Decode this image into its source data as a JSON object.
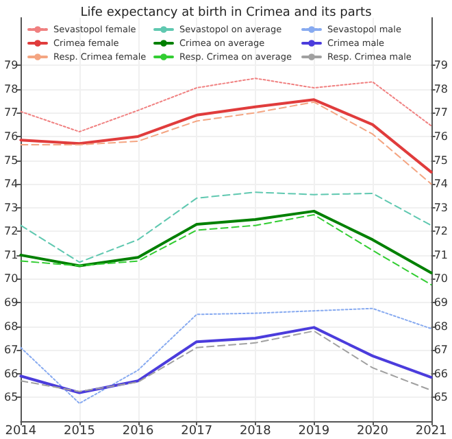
{
  "chart_data": {
    "type": "line",
    "title": "Life expectancy at birth in Crimea and its parts",
    "x": [
      2014,
      2015,
      2016,
      2017,
      2018,
      2019,
      2020,
      2021
    ],
    "series": [
      {
        "name": "Sevastopol female",
        "color": "#f08080",
        "line_style": "dotted",
        "values": [
          77.05,
          76.2,
          77.1,
          78.05,
          78.45,
          78.05,
          78.3,
          76.45
        ]
      },
      {
        "name": "Crimea female",
        "color": "#e03c3c",
        "line_style": "solid",
        "values": [
          75.85,
          75.7,
          76.0,
          76.9,
          77.25,
          77.55,
          76.5,
          74.5
        ]
      },
      {
        "name": "Resp. Crimea female",
        "color": "#f4a582",
        "line_style": "dashed",
        "values": [
          75.65,
          75.65,
          75.8,
          76.65,
          77.0,
          77.45,
          76.1,
          74.0
        ]
      },
      {
        "name": "Sevastopol on average",
        "color": "#5fc8b0",
        "line_style": "dashed",
        "values": [
          72.25,
          70.7,
          71.65,
          73.4,
          73.65,
          73.55,
          73.6,
          72.25
        ]
      },
      {
        "name": "Crimea on average",
        "color": "#008000",
        "line_style": "solid",
        "values": [
          71.0,
          70.55,
          70.9,
          72.3,
          72.5,
          72.85,
          71.65,
          70.25
        ]
      },
      {
        "name": "Resp. Crimea on average",
        "color": "#32cd32",
        "line_style": "dashed",
        "values": [
          70.75,
          70.55,
          70.75,
          72.05,
          72.25,
          72.7,
          71.2,
          69.75
        ]
      },
      {
        "name": "Sevastopol male",
        "color": "#87aaf0",
        "line_style": "dotted",
        "values": [
          67.1,
          64.75,
          66.15,
          68.5,
          68.55,
          68.65,
          68.75,
          67.9
        ]
      },
      {
        "name": "Crimea male",
        "color": "#4b3cdc",
        "line_style": "solid",
        "values": [
          65.9,
          65.2,
          65.7,
          67.35,
          67.5,
          67.95,
          66.75,
          65.85
        ]
      },
      {
        "name": "Resp. Crimea male",
        "color": "#a0a0a0",
        "line_style": "dashed",
        "values": [
          65.7,
          65.25,
          65.65,
          67.1,
          67.3,
          67.8,
          66.25,
          65.3
        ]
      }
    ],
    "xlim": [
      2014,
      2021
    ],
    "xticks": [
      2014,
      2015,
      2016,
      2017,
      2018,
      2019,
      2020,
      2021
    ],
    "ylim": [
      64,
      81
    ],
    "yticks": [
      65,
      66,
      67,
      68,
      69,
      70,
      71,
      72,
      73,
      74,
      75,
      76,
      77,
      78,
      79
    ],
    "y2lim": [
      64,
      81
    ],
    "y2ticks": [
      65,
      66,
      67,
      68,
      69,
      70,
      71,
      72,
      73,
      74,
      75,
      76,
      77,
      78,
      79
    ],
    "grid": true,
    "legend": "top",
    "marker": "none"
  }
}
